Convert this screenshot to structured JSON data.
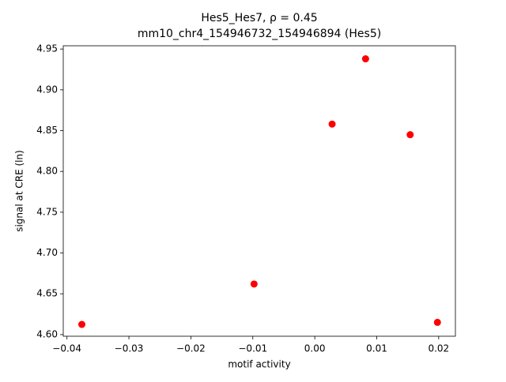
{
  "chart_data": {
    "type": "scatter",
    "title": "Hes5_Hes7, ρ = 0.45",
    "subtitle": "mm10_chr4_154946732_154946894 (Hes5)",
    "x_label": "motif activity",
    "y_label": "signal at CRE (ln)",
    "color": "#ff0000",
    "series": [
      {
        "name": "CRE",
        "color": "#ff0000",
        "x": [
          -0.0376,
          -0.0098,
          0.0028,
          0.0082,
          0.0154,
          0.0198
        ],
        "values": [
          4.6125,
          4.662,
          4.858,
          4.938,
          4.845,
          4.615
        ]
      }
    ],
    "xlim": [
      -0.0406,
      0.0227
    ],
    "ylim": [
      4.598,
      4.954
    ],
    "xticks": [
      {
        "value": -0.04,
        "label": "−0.04"
      },
      {
        "value": -0.03,
        "label": "−0.03"
      },
      {
        "value": -0.02,
        "label": "−0.02"
      },
      {
        "value": -0.01,
        "label": "−0.01"
      },
      {
        "value": 0,
        "label": "0.00"
      },
      {
        "value": 0.01,
        "label": "0.01"
      },
      {
        "value": 0.02,
        "label": "0.02"
      }
    ],
    "yticks": [
      {
        "value": 4.6,
        "label": "4.60"
      },
      {
        "value": 4.65,
        "label": "4.65"
      },
      {
        "value": 4.7,
        "label": "4.70"
      },
      {
        "value": 4.75,
        "label": "4.75"
      },
      {
        "value": 4.8,
        "label": "4.80"
      },
      {
        "value": 4.85,
        "label": "4.85"
      },
      {
        "value": 4.9,
        "label": "4.90"
      },
      {
        "value": 4.95,
        "label": "4.95"
      }
    ]
  }
}
